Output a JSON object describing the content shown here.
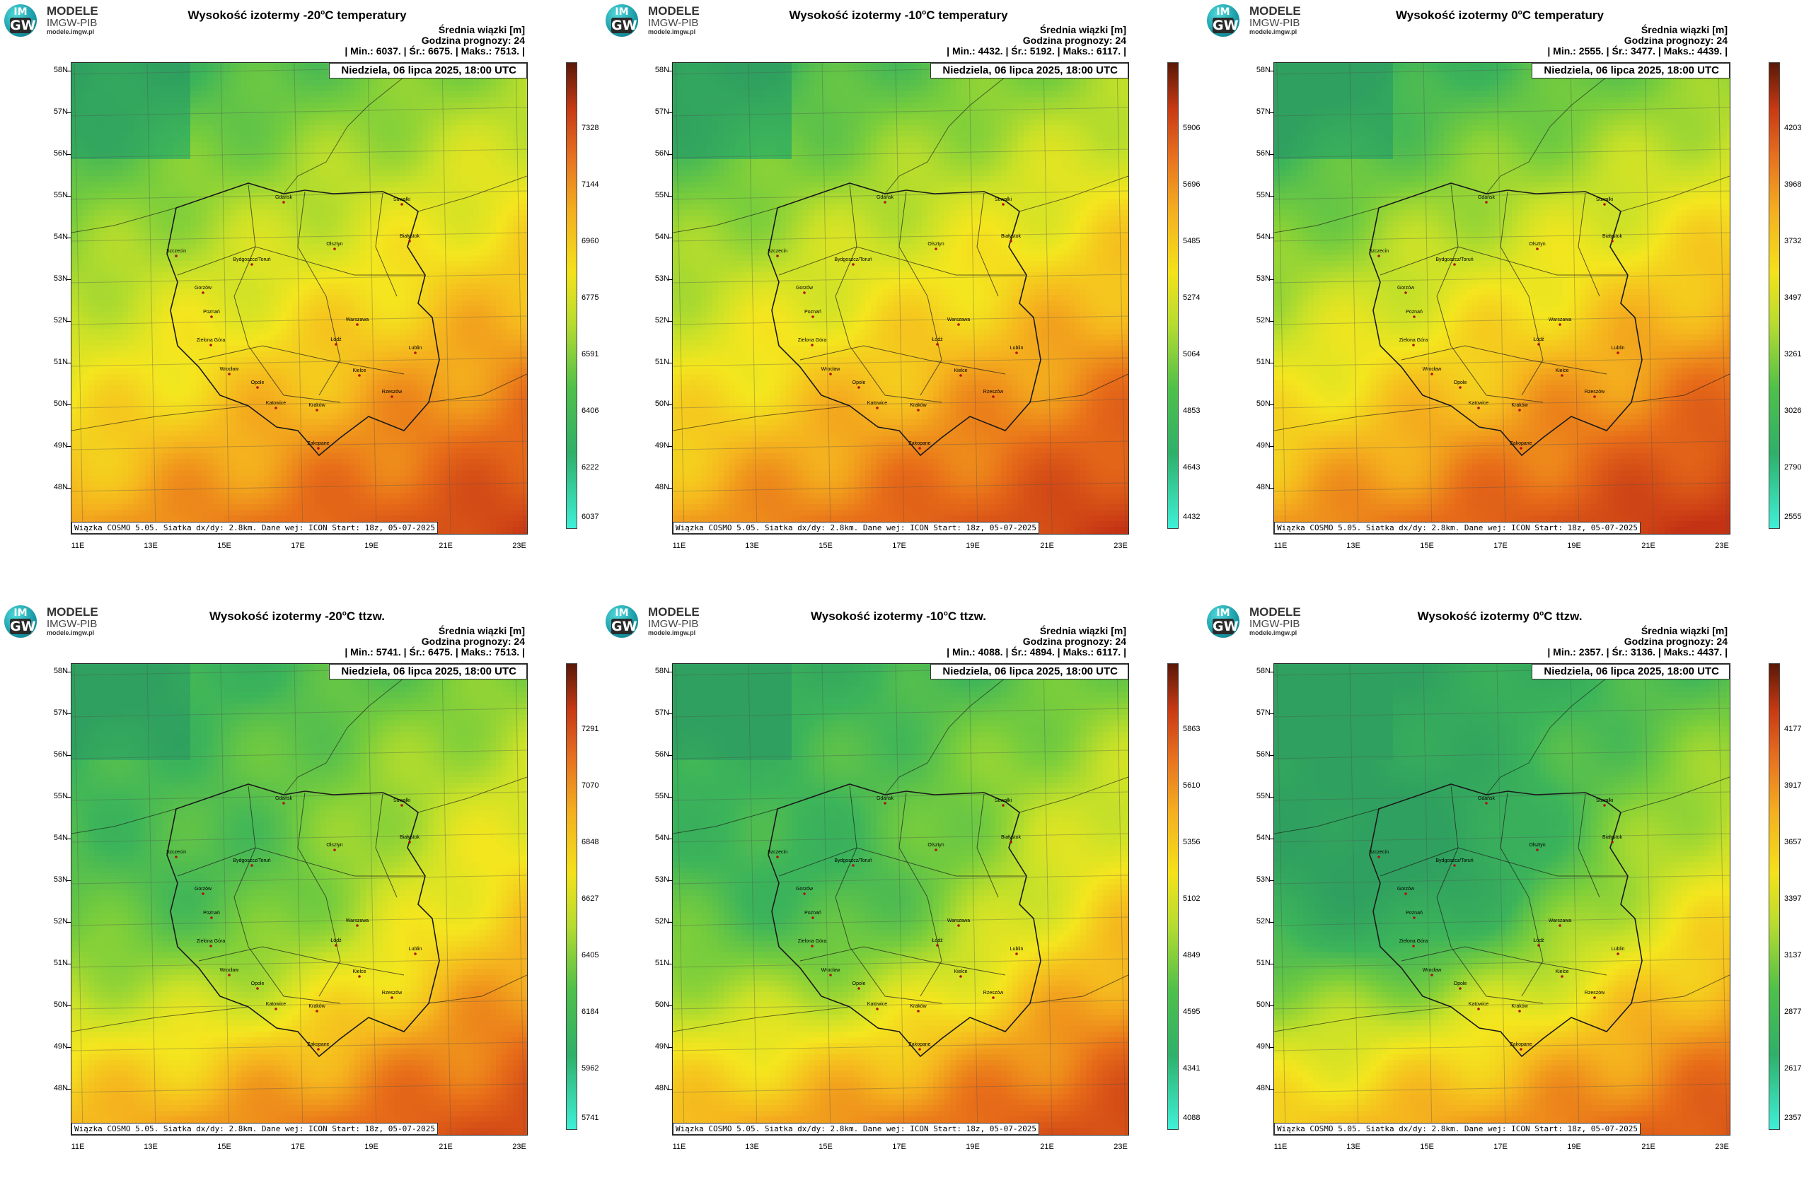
{
  "logo": {
    "badge_top": "IM",
    "badge_bottom": "GW",
    "line1": "MODELE",
    "line2": "IMGW-PIB",
    "line3": "modele.imgw.pl"
  },
  "header": {
    "line1": "Średnia wiązki [m]",
    "line2": "Godzina prognozy: 24"
  },
  "date": "Niedziela, 06 lipca 2025, 18:00 UTC",
  "credit": "Wiązka COSMO 5.05. Siatka dx/dy: 2.8km. Dane wej: ICON Start: 18z, 05-07-2025",
  "lat_labels": [
    "58N",
    "57N",
    "56N",
    "55N",
    "54N",
    "53N",
    "52N",
    "51N",
    "50N",
    "49N",
    "48N"
  ],
  "lon_labels": [
    "11E",
    "13E",
    "15E",
    "17E",
    "19E",
    "21E",
    "23E"
  ],
  "cities": [
    "Gdańsk",
    "Suwałki",
    "Olsztyn",
    "Szczecin",
    "Białystok",
    "Bydgoszcz/Toruń",
    "Gorzów",
    "Poznań",
    "Warszawa",
    "Łódź",
    "Zielona Góra",
    "Lublin",
    "Wrocław",
    "Kielce",
    "Opole",
    "Rzeszów",
    "Katowice",
    "Kraków",
    "Zakopane"
  ],
  "colors": {
    "map_low": "#2fb86a",
    "map_mid": "#f4e21a",
    "map_high": "#d63c14",
    "colorbar_min": "#3ff0d8",
    "colorbar_max": "#5a1808"
  },
  "panels": [
    {
      "title_pre": "Wysokość izotermy -20",
      "title_suf": "C temperatury",
      "sup": "o",
      "stats": {
        "min_label": "| Min.:",
        "min": "6037.",
        "avg_label": "| Śr.:",
        "avg": "6675.",
        "max_label": "| Maks.:",
        "max": "7513. |"
      },
      "colorbar": [
        "7328",
        "7144",
        "6960",
        "6775",
        "6591",
        "6406",
        "6222",
        "6037"
      ]
    },
    {
      "title_pre": "Wysokość izotermy -10",
      "title_suf": "C temperatury",
      "sup": "o",
      "stats": {
        "min_label": "| Min.:",
        "min": "4432.",
        "avg_label": "| Śr.:",
        "avg": "5192.",
        "max_label": "| Maks.:",
        "max": "6117. |"
      },
      "colorbar": [
        "5906",
        "5696",
        "5485",
        "5274",
        "5064",
        "4853",
        "4643",
        "4432"
      ]
    },
    {
      "title_pre": "Wysokość izotermy 0",
      "title_suf": "C temperatury",
      "sup": "o",
      "stats": {
        "min_label": "| Min.:",
        "min": "2555.",
        "avg_label": "| Śr.:",
        "avg": "3477.",
        "max_label": "| Maks.:",
        "max": "4439. |"
      },
      "colorbar": [
        "4203",
        "3968",
        "3732",
        "3497",
        "3261",
        "3026",
        "2790",
        "2555"
      ]
    },
    {
      "title_pre": "Wysokość izotermy -20",
      "title_suf": "C ttzw.",
      "sup": "o",
      "stats": {
        "min_label": "| Min.:",
        "min": "5741.",
        "avg_label": "| Śr.:",
        "avg": "6475.",
        "max_label": "| Maks.:",
        "max": "7513. |"
      },
      "colorbar": [
        "7291",
        "7070",
        "6848",
        "6627",
        "6405",
        "6184",
        "5962",
        "5741"
      ]
    },
    {
      "title_pre": "Wysokość izotermy -10",
      "title_suf": "C ttzw.",
      "sup": "o",
      "stats": {
        "min_label": "| Min.:",
        "min": "4088.",
        "avg_label": "| Śr.:",
        "avg": "4894.",
        "max_label": "| Maks.:",
        "max": "6117. |"
      },
      "colorbar": [
        "5863",
        "5610",
        "5356",
        "5102",
        "4849",
        "4595",
        "4341",
        "4088"
      ]
    },
    {
      "title_pre": "Wysokość izotermy 0",
      "title_suf": "C ttzw.",
      "sup": "o",
      "stats": {
        "min_label": "| Min.:",
        "min": "2357.",
        "avg_label": "| Śr.:",
        "avg": "3136.",
        "max_label": "| Maks.:",
        "max": "4437. |"
      },
      "colorbar": [
        "4177",
        "3917",
        "3657",
        "3397",
        "3137",
        "2877",
        "2617",
        "2357"
      ]
    }
  ]
}
